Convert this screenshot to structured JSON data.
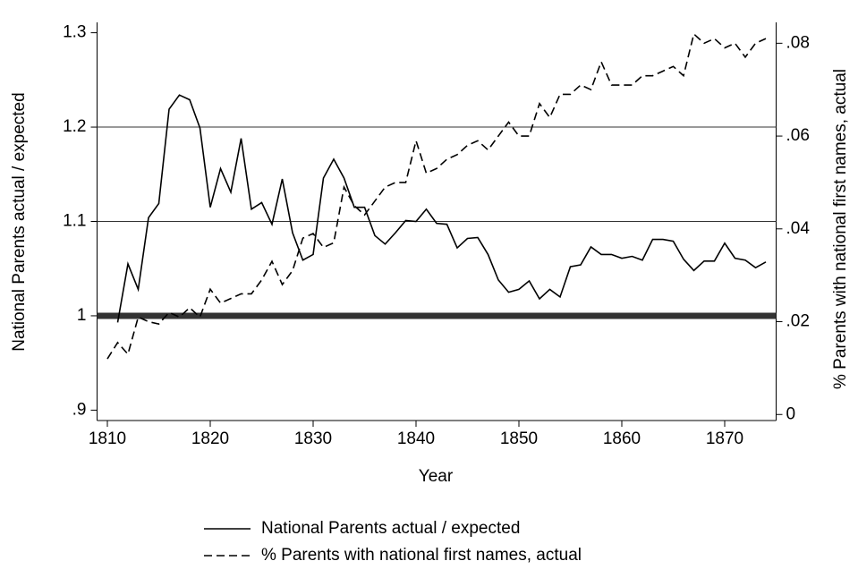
{
  "chart_data": {
    "type": "line",
    "x_label": "Year",
    "y_label": "National Parents actual / expected",
    "y2_label": "% Parents with national first names, actual",
    "x": [
      1810,
      1811,
      1812,
      1813,
      1814,
      1815,
      1816,
      1817,
      1818,
      1819,
      1820,
      1821,
      1822,
      1823,
      1824,
      1825,
      1826,
      1827,
      1828,
      1829,
      1830,
      1831,
      1832,
      1833,
      1834,
      1835,
      1836,
      1837,
      1838,
      1839,
      1840,
      1841,
      1842,
      1843,
      1844,
      1845,
      1846,
      1847,
      1848,
      1849,
      1850,
      1851,
      1852,
      1853,
      1854,
      1855,
      1856,
      1857,
      1858,
      1859,
      1860,
      1861,
      1862,
      1863,
      1864,
      1865,
      1866,
      1867,
      1868,
      1869,
      1870,
      1871,
      1872,
      1873,
      1874
    ],
    "series": [
      {
        "name": "National Parents actual / expected",
        "color": "#000000",
        "dash": "solid",
        "values": [
          null,
          0.993,
          1.055,
          1.028,
          1.104,
          1.119,
          1.219,
          1.234,
          1.229,
          1.199,
          1.115,
          1.156,
          1.131,
          1.188,
          1.113,
          1.12,
          1.097,
          1.145,
          1.088,
          1.059,
          1.065,
          1.146,
          1.166,
          1.146,
          1.115,
          1.115,
          1.085,
          1.076,
          1.088,
          1.101,
          1.1,
          1.113,
          1.098,
          1.097,
          1.072,
          1.082,
          1.083,
          1.065,
          1.038,
          1.025,
          1.028,
          1.037,
          1.018,
          1.028,
          1.02,
          1.052,
          1.054,
          1.073,
          1.065,
          1.065,
          1.061,
          1.063,
          1.059,
          1.081,
          1.081,
          1.079,
          1.06,
          1.048,
          1.058,
          1.058,
          1.077,
          1.061,
          1.059,
          1.051,
          1.057
        ]
      },
      {
        "name": "% Parents with national first names, actual",
        "color": "#000000",
        "dash": "dashed",
        "axis": "y2",
        "values": [
          0.012,
          0.0155,
          0.013,
          0.021,
          0.02,
          0.0195,
          0.022,
          0.021,
          0.023,
          0.021,
          0.027,
          0.024,
          0.025,
          0.026,
          0.026,
          0.029,
          0.033,
          0.028,
          0.031,
          0.038,
          0.039,
          0.036,
          0.037,
          0.049,
          0.045,
          0.043,
          0.046,
          0.049,
          0.05,
          0.05,
          0.059,
          0.052,
          0.053,
          0.055,
          0.056,
          0.058,
          0.059,
          0.057,
          0.06,
          0.063,
          0.06,
          0.06,
          0.067,
          0.064,
          0.069,
          0.069,
          0.071,
          0.07,
          0.076,
          0.071,
          0.071,
          0.071,
          0.073,
          0.073,
          0.074,
          0.075,
          0.073,
          0.082,
          0.08,
          0.081,
          0.079,
          0.08,
          0.077,
          0.08,
          0.081
        ]
      }
    ],
    "xlim": [
      1809,
      1875
    ],
    "xticks": [
      1810,
      1820,
      1830,
      1840,
      1850,
      1860,
      1870
    ],
    "ylim": [
      0.889,
      1.311
    ],
    "yticks": [
      {
        "value": 0.9,
        "label": ".9"
      },
      1,
      1.1,
      1.2,
      1.3
    ],
    "y2lim": [
      -0.0013,
      0.0845
    ],
    "y2ticks": [
      0,
      {
        "value": 0.02,
        "label": ".02"
      },
      {
        "value": 0.04,
        "label": ".04"
      },
      {
        "value": 0.06,
        "label": ".06"
      },
      {
        "value": 0.08,
        "label": ".08"
      }
    ],
    "grid": true,
    "reference_line": 1,
    "legend": "bottom"
  }
}
